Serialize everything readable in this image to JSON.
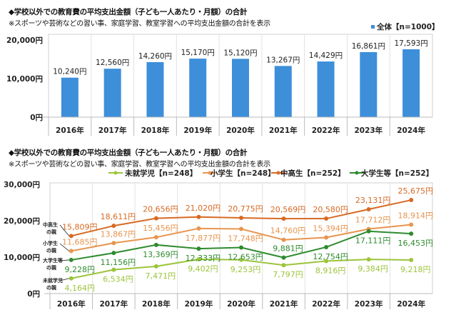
{
  "chart_data": [
    {
      "type": "bar",
      "title": "◆学校以外での教育費の平均支出金額（子ども一人あたり・月額）の合計",
      "subtitle": "※スポーツや芸術などの習い事、家庭学習、教室学習への平均支出金額の合計を表示",
      "categories": [
        "2016年",
        "2017年",
        "2018年",
        "2019年",
        "2020年",
        "2021年",
        "2022年",
        "2023年",
        "2024年"
      ],
      "series": [
        {
          "name": "全体【n=1000】",
          "color": "#3d8fd9",
          "values": [
            10240,
            12560,
            14260,
            15170,
            15120,
            13267,
            14429,
            16861,
            17593
          ],
          "labels": [
            "10,240円",
            "12,560円",
            "14,260円",
            "15,170円",
            "15,120円",
            "13,267円",
            "14,429円",
            "16,861円",
            "17,593円"
          ]
        }
      ],
      "yticks": [
        {
          "value": 0,
          "label": "0円"
        },
        {
          "value": 10000,
          "label": "10,000円"
        },
        {
          "value": 20000,
          "label": "20,000円"
        }
      ],
      "ylim": [
        0,
        20000
      ],
      "legend": "top-right",
      "grid": false
    },
    {
      "type": "line",
      "title": "◆学校以外での教育費の平均支出金額（子ども一人あたり・月額）の合計",
      "subtitle": "※スポーツや芸術などの習い事、家庭学習、教室学習への平均支出金額の合計を表示",
      "categories": [
        "2016年",
        "2017年",
        "2018年",
        "2019年",
        "2020年",
        "2021年",
        "2022年",
        "2023年",
        "2024年"
      ],
      "series": [
        {
          "name": "未就学児【n=248】",
          "side_label": [
            "未就学児",
            "の親"
          ],
          "color": "#9cc43a",
          "values": [
            4164,
            6534,
            7471,
            9402,
            9253,
            7797,
            8916,
            9384,
            9218
          ],
          "labels": [
            "4,164円",
            "6,534円",
            "7,471円",
            "9,402円",
            "9,253円",
            "7,797円",
            "8,916円",
            "9,384円",
            "9,218円"
          ]
        },
        {
          "name": "小学生【n=248】",
          "side_label": [
            "小学生",
            "の親"
          ],
          "color": "#e8954f",
          "values": [
            11685,
            13867,
            15456,
            17877,
            17748,
            14760,
            15394,
            17712,
            18914
          ],
          "labels": [
            "11,685円",
            "13,867円",
            "15,456円",
            "17,877円",
            "17,748円",
            "14,760円",
            "15,394円",
            "17,712円",
            "18,914円"
          ]
        },
        {
          "name": "中高生【n=252】",
          "side_label": [
            "中高生",
            "の親"
          ],
          "color": "#d76a24",
          "values": [
            15809,
            18611,
            20656,
            21020,
            20775,
            20569,
            20580,
            23131,
            25675
          ],
          "labels": [
            "15,809円",
            "18,611円",
            "20,656円",
            "21,020円",
            "20,775円",
            "20,569円",
            "20,580円",
            "23,131円",
            "25,675円"
          ]
        },
        {
          "name": "大学生等【n=252】",
          "side_label": [
            "大学生等",
            "の親"
          ],
          "color": "#2e8b2e",
          "values": [
            9228,
            11156,
            13369,
            12333,
            12653,
            9881,
            12754,
            17111,
            16453
          ],
          "labels": [
            "9,228円",
            "11,156円",
            "13,369円",
            "12,333円",
            "12,653円",
            "9,881円",
            "12,754円",
            "17,111円",
            "16,453円"
          ]
        }
      ],
      "yticks": [
        {
          "value": 0,
          "label": "0円"
        },
        {
          "value": 10000,
          "label": "10,000円"
        },
        {
          "value": 20000,
          "label": "20,000円"
        },
        {
          "value": 30000,
          "label": "30,000円"
        }
      ],
      "ylim": [
        0,
        30000
      ],
      "legend": "top",
      "grid": false
    }
  ]
}
